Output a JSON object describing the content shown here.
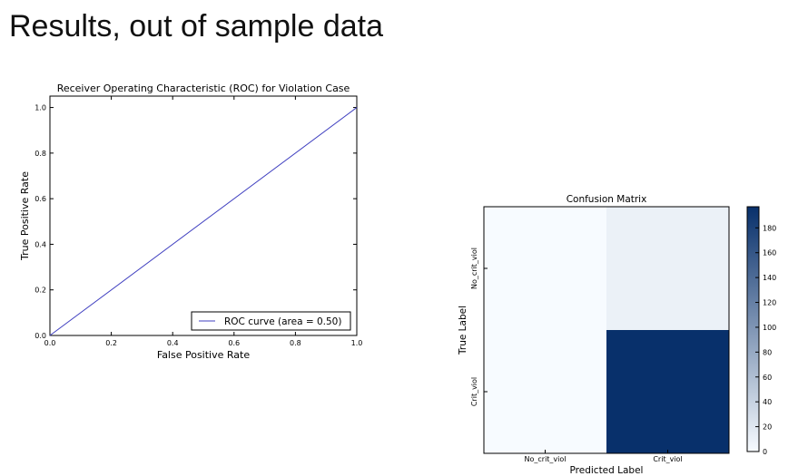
{
  "slide": {
    "title": "Results, out of sample data"
  },
  "chart_data": [
    {
      "type": "line",
      "title": "Receiver Operating Characteristic (ROC) for Violation Case",
      "xlabel": "False Positive Rate",
      "ylabel": "True Positive Rate",
      "xlim": [
        0.0,
        1.0
      ],
      "ylim": [
        0.0,
        1.05
      ],
      "xticks": [
        0.0,
        0.2,
        0.4,
        0.6,
        0.8,
        1.0
      ],
      "yticks": [
        0.0,
        0.2,
        0.4,
        0.6,
        0.8,
        1.0
      ],
      "grid": false,
      "legend": {
        "placement": "lower-right"
      },
      "series": [
        {
          "name": "ROC curve (area = 0.50)",
          "x": [
            0.0,
            1.0
          ],
          "y": [
            0.0,
            1.0
          ],
          "color": "#4040c0"
        }
      ]
    },
    {
      "type": "heatmap",
      "title": "Confusion Matrix",
      "xlabel": "Predicted Label",
      "ylabel": "True Label",
      "x_categories": [
        "No_crit_viol",
        "Crit_viol"
      ],
      "y_categories": [
        "No_crit_viol",
        "Crit_viol"
      ],
      "values": [
        [
          0,
          10
        ],
        [
          0,
          197
        ]
      ],
      "colorbar": {
        "min": 0,
        "max": 197,
        "ticks": [
          0,
          20,
          40,
          60,
          80,
          100,
          120,
          140,
          160,
          180
        ]
      },
      "colormap": [
        "#f7fbff",
        "#08306b"
      ]
    }
  ]
}
